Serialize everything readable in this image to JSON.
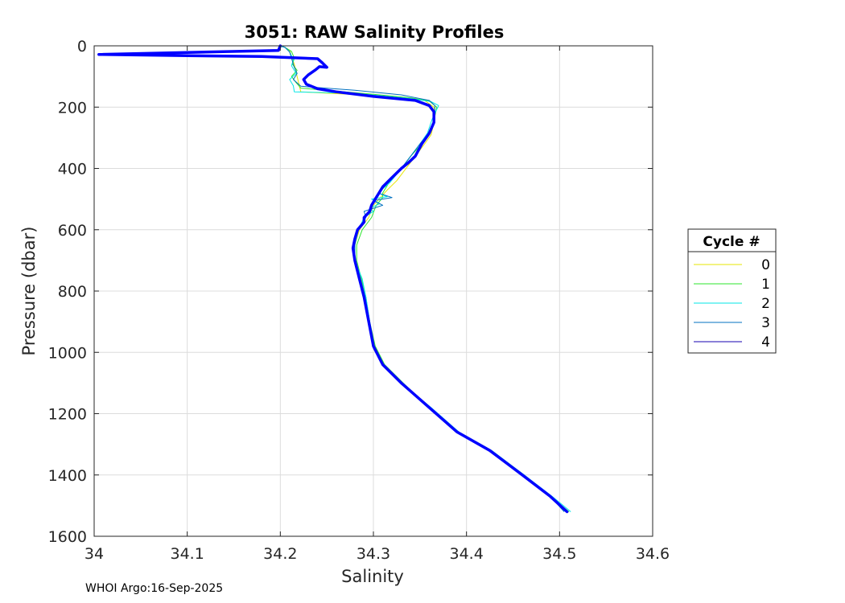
{
  "chart_data": {
    "type": "line",
    "title": "3051: RAW Salinity Profiles",
    "xlabel": "Salinity",
    "ylabel": "Pressure (dbar)",
    "xlim": [
      34.0,
      34.6
    ],
    "ylim": [
      0,
      1600
    ],
    "y_reversed": true,
    "grid": true,
    "x_ticks": [
      34.0,
      34.1,
      34.2,
      34.3,
      34.4,
      34.5,
      34.6
    ],
    "x_tick_labels": [
      "34",
      "34.1",
      "34.2",
      "34.3",
      "34.4",
      "34.5",
      "34.6"
    ],
    "y_ticks": [
      0,
      200,
      400,
      600,
      800,
      1000,
      1200,
      1400,
      1600
    ],
    "y_tick_labels": [
      "0",
      "200",
      "400",
      "600",
      "800",
      "1000",
      "1200",
      "1400",
      "1600"
    ],
    "legend": {
      "title": "Cycle #",
      "placement": "outside-right",
      "entries": [
        "0",
        "1",
        "2",
        "3",
        "4"
      ]
    },
    "series": [
      {
        "name": "0",
        "color": "#e6e600",
        "points": [
          [
            34.2,
            0
          ],
          [
            34.205,
            5
          ],
          [
            34.21,
            15
          ],
          [
            34.212,
            35
          ],
          [
            34.215,
            60
          ],
          [
            34.218,
            100
          ],
          [
            34.222,
            150
          ],
          [
            34.3,
            162
          ],
          [
            34.355,
            178
          ],
          [
            34.365,
            200
          ],
          [
            34.365,
            250
          ],
          [
            34.362,
            290
          ],
          [
            34.355,
            320
          ],
          [
            34.345,
            360
          ],
          [
            34.335,
            400
          ],
          [
            34.325,
            440
          ],
          [
            34.315,
            470
          ],
          [
            34.3,
            520
          ],
          [
            34.295,
            560
          ],
          [
            34.285,
            600
          ],
          [
            34.28,
            650
          ],
          [
            34.28,
            700
          ],
          [
            34.285,
            760
          ],
          [
            34.29,
            820
          ],
          [
            34.295,
            900
          ],
          [
            34.3,
            980
          ],
          [
            34.31,
            1040
          ],
          [
            34.33,
            1100
          ],
          [
            34.36,
            1180
          ],
          [
            34.39,
            1260
          ],
          [
            34.425,
            1320
          ],
          [
            34.46,
            1400
          ],
          [
            34.49,
            1470
          ],
          [
            34.51,
            1520
          ]
        ]
      },
      {
        "name": "1",
        "color": "#2ee62e",
        "points": [
          [
            34.198,
            0
          ],
          [
            34.205,
            5
          ],
          [
            34.212,
            18
          ],
          [
            34.215,
            40
          ],
          [
            34.213,
            60
          ],
          [
            34.218,
            80
          ],
          [
            34.212,
            100
          ],
          [
            34.217,
            120
          ],
          [
            34.222,
            138
          ],
          [
            34.3,
            158
          ],
          [
            34.34,
            170
          ],
          [
            34.36,
            180
          ],
          [
            34.368,
            200
          ],
          [
            34.365,
            245
          ],
          [
            34.36,
            285
          ],
          [
            34.352,
            320
          ],
          [
            34.34,
            360
          ],
          [
            34.33,
            400
          ],
          [
            34.318,
            440
          ],
          [
            34.31,
            480
          ],
          [
            34.31,
            495
          ],
          [
            34.303,
            520
          ],
          [
            34.298,
            560
          ],
          [
            34.288,
            600
          ],
          [
            34.282,
            650
          ],
          [
            34.282,
            700
          ],
          [
            34.287,
            760
          ],
          [
            34.292,
            820
          ],
          [
            34.296,
            900
          ],
          [
            34.302,
            980
          ],
          [
            34.312,
            1040
          ],
          [
            34.332,
            1100
          ],
          [
            34.36,
            1180
          ],
          [
            34.392,
            1260
          ],
          [
            34.427,
            1320
          ],
          [
            34.462,
            1400
          ],
          [
            34.49,
            1470
          ],
          [
            34.51,
            1520
          ]
        ]
      },
      {
        "name": "2",
        "color": "#00e6e6",
        "points": [
          [
            34.2,
            0
          ],
          [
            34.205,
            5
          ],
          [
            34.21,
            20
          ],
          [
            34.214,
            45
          ],
          [
            34.212,
            65
          ],
          [
            34.217,
            90
          ],
          [
            34.21,
            110
          ],
          [
            34.214,
            130
          ],
          [
            34.215,
            150
          ],
          [
            34.28,
            155
          ],
          [
            34.34,
            172
          ],
          [
            34.362,
            182
          ],
          [
            34.37,
            195
          ],
          [
            34.363,
            240
          ],
          [
            34.358,
            285
          ],
          [
            34.35,
            320
          ],
          [
            34.34,
            360
          ],
          [
            34.33,
            400
          ],
          [
            34.318,
            445
          ],
          [
            34.305,
            480
          ],
          [
            34.315,
            492
          ],
          [
            34.298,
            500
          ],
          [
            34.307,
            515
          ],
          [
            34.296,
            530
          ],
          [
            34.3,
            540
          ],
          [
            34.29,
            560
          ],
          [
            34.284,
            600
          ],
          [
            34.28,
            650
          ],
          [
            34.28,
            700
          ],
          [
            34.288,
            760
          ],
          [
            34.292,
            820
          ],
          [
            34.296,
            900
          ],
          [
            34.3,
            980
          ],
          [
            34.31,
            1040
          ],
          [
            34.33,
            1100
          ],
          [
            34.362,
            1180
          ],
          [
            34.392,
            1260
          ],
          [
            34.427,
            1320
          ],
          [
            34.462,
            1400
          ],
          [
            34.492,
            1470
          ],
          [
            34.512,
            1520
          ]
        ]
      },
      {
        "name": "3",
        "color": "#0070c0",
        "points": [
          [
            34.2,
            0
          ],
          [
            34.205,
            5
          ],
          [
            34.21,
            20
          ],
          [
            34.212,
            40
          ],
          [
            34.215,
            70
          ],
          [
            34.218,
            90
          ],
          [
            34.214,
            110
          ],
          [
            34.222,
            132
          ],
          [
            34.28,
            145
          ],
          [
            34.33,
            160
          ],
          [
            34.36,
            178
          ],
          [
            34.366,
            195
          ],
          [
            34.366,
            240
          ],
          [
            34.36,
            285
          ],
          [
            34.35,
            320
          ],
          [
            34.34,
            360
          ],
          [
            34.33,
            400
          ],
          [
            34.318,
            440
          ],
          [
            34.305,
            480
          ],
          [
            34.32,
            495
          ],
          [
            34.3,
            505
          ],
          [
            34.31,
            520
          ],
          [
            34.29,
            540
          ],
          [
            34.292,
            560
          ],
          [
            34.283,
            600
          ],
          [
            34.28,
            650
          ],
          [
            34.28,
            700
          ],
          [
            34.286,
            760
          ],
          [
            34.291,
            820
          ],
          [
            34.295,
            900
          ],
          [
            34.3,
            980
          ],
          [
            34.31,
            1040
          ],
          [
            34.33,
            1100
          ],
          [
            34.36,
            1180
          ],
          [
            34.39,
            1260
          ],
          [
            34.425,
            1320
          ],
          [
            34.46,
            1400
          ],
          [
            34.49,
            1470
          ],
          [
            34.505,
            1520
          ]
        ]
      },
      {
        "name": "4",
        "color": "#1400b0",
        "points": [
          [
            34.2,
            0
          ],
          [
            34.198,
            15
          ],
          [
            34.005,
            28
          ],
          [
            34.1,
            32
          ],
          [
            34.18,
            35
          ],
          [
            34.24,
            42
          ],
          [
            34.245,
            55
          ],
          [
            34.25,
            70
          ],
          [
            34.242,
            68
          ],
          [
            34.238,
            78
          ],
          [
            34.23,
            95
          ],
          [
            34.225,
            110
          ],
          [
            34.228,
            125
          ],
          [
            34.24,
            140
          ],
          [
            34.26,
            150
          ],
          [
            34.3,
            165
          ],
          [
            34.345,
            178
          ],
          [
            34.36,
            195
          ],
          [
            34.365,
            215
          ],
          [
            34.365,
            250
          ],
          [
            34.36,
            285
          ],
          [
            34.352,
            320
          ],
          [
            34.345,
            360
          ],
          [
            34.338,
            380
          ],
          [
            34.33,
            400
          ],
          [
            34.32,
            430
          ],
          [
            34.31,
            460
          ],
          [
            34.305,
            485
          ],
          [
            34.302,
            500
          ],
          [
            34.298,
            520
          ],
          [
            34.296,
            540
          ],
          [
            34.29,
            560
          ],
          [
            34.29,
            575
          ],
          [
            34.283,
            600
          ],
          [
            34.28,
            630
          ],
          [
            34.278,
            660
          ],
          [
            34.28,
            700
          ],
          [
            34.285,
            760
          ],
          [
            34.29,
            820
          ],
          [
            34.295,
            900
          ],
          [
            34.3,
            980
          ],
          [
            34.31,
            1040
          ],
          [
            34.33,
            1100
          ],
          [
            34.36,
            1180
          ],
          [
            34.39,
            1260
          ],
          [
            34.425,
            1320
          ],
          [
            34.46,
            1400
          ],
          [
            34.49,
            1470
          ],
          [
            34.508,
            1520
          ]
        ]
      }
    ],
    "highlight": {
      "name": "4 (bold)",
      "color": "#0000ff",
      "points": [
        [
          34.2,
          0
        ],
        [
          34.198,
          15
        ],
        [
          34.005,
          28
        ],
        [
          34.1,
          32
        ],
        [
          34.18,
          35
        ],
        [
          34.24,
          42
        ],
        [
          34.245,
          55
        ],
        [
          34.25,
          70
        ],
        [
          34.242,
          68
        ],
        [
          34.238,
          78
        ],
        [
          34.23,
          95
        ],
        [
          34.225,
          110
        ],
        [
          34.228,
          125
        ],
        [
          34.24,
          140
        ],
        [
          34.26,
          150
        ],
        [
          34.3,
          165
        ],
        [
          34.345,
          178
        ],
        [
          34.36,
          195
        ],
        [
          34.365,
          215
        ],
        [
          34.365,
          250
        ],
        [
          34.36,
          285
        ],
        [
          34.352,
          320
        ],
        [
          34.345,
          360
        ],
        [
          34.338,
          380
        ],
        [
          34.33,
          400
        ],
        [
          34.32,
          430
        ],
        [
          34.31,
          460
        ],
        [
          34.305,
          485
        ],
        [
          34.302,
          500
        ],
        [
          34.298,
          520
        ],
        [
          34.296,
          540
        ],
        [
          34.29,
          560
        ],
        [
          34.29,
          575
        ],
        [
          34.283,
          600
        ],
        [
          34.28,
          630
        ],
        [
          34.278,
          660
        ],
        [
          34.28,
          700
        ],
        [
          34.285,
          760
        ],
        [
          34.29,
          820
        ],
        [
          34.295,
          900
        ],
        [
          34.3,
          980
        ],
        [
          34.31,
          1040
        ],
        [
          34.33,
          1100
        ],
        [
          34.36,
          1180
        ],
        [
          34.39,
          1260
        ],
        [
          34.425,
          1320
        ],
        [
          34.46,
          1400
        ],
        [
          34.49,
          1470
        ],
        [
          34.508,
          1520
        ]
      ]
    }
  },
  "footer": "WHOI Argo:16-Sep-2025"
}
